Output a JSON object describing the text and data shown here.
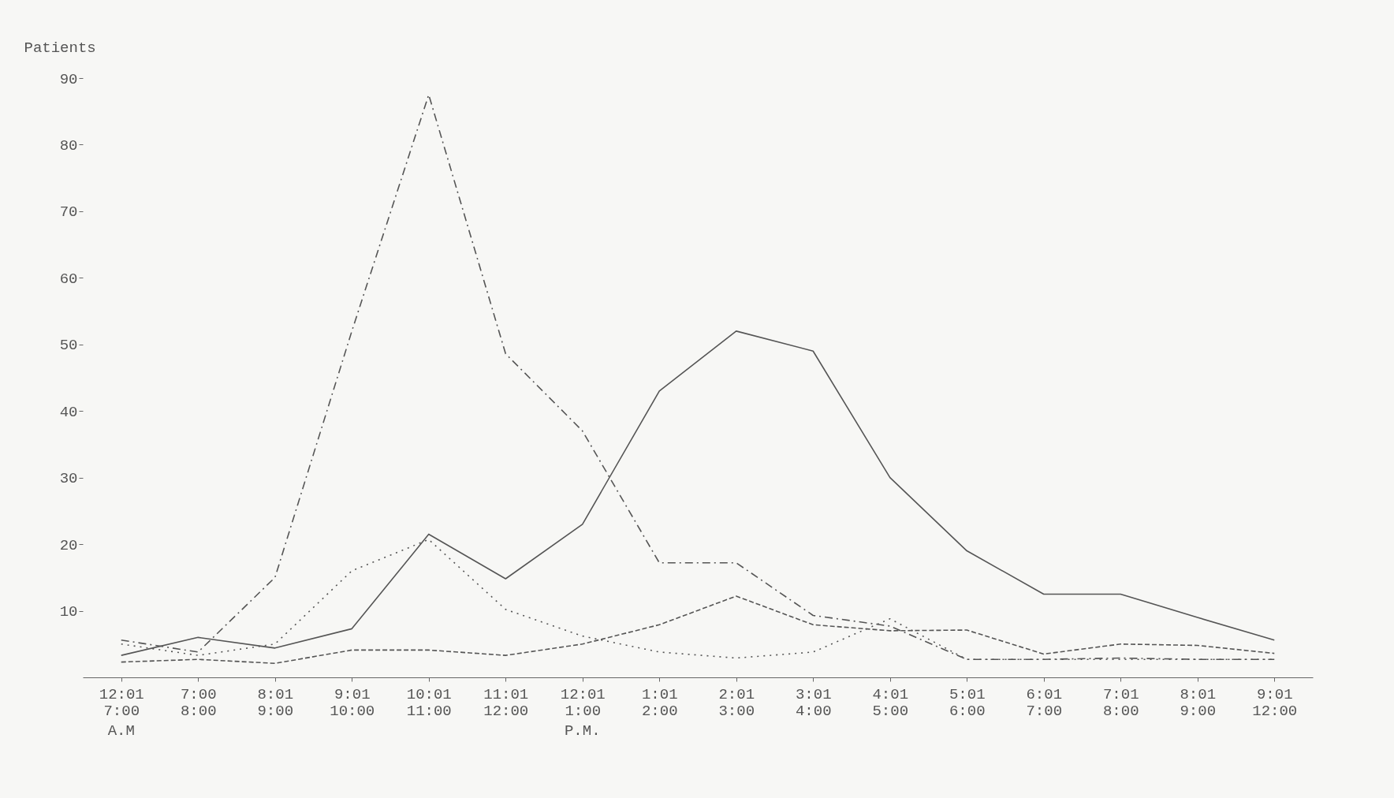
{
  "chart_data": {
    "type": "line",
    "ylabel": "Patients",
    "categories": [
      "12:01 7:00",
      "7:00 8:00",
      "8:01 9:00",
      "9:01 10:00",
      "10:01 11:00",
      "11:01 12:00",
      "12:01 1:00",
      "1:01 2:00",
      "2:01 3:00",
      "3:01 4:00",
      "4:01 5:00",
      "5:01 6:00",
      "6:01 7:00",
      "7:01 8:00",
      "8:01 9:00",
      "9:01 12:00"
    ],
    "series": [
      {
        "color": "#555555",
        "line_style": "solid",
        "values": [
          3.3,
          6,
          4.4,
          7.3,
          21.5,
          14.8,
          23,
          43,
          52,
          49,
          30,
          19,
          12.5,
          12.5,
          9,
          5.6
        ]
      },
      {
        "color": "#555555",
        "line_style": "dashdot",
        "values": [
          5.6,
          3.8,
          15,
          52,
          87.5,
          48.6,
          37,
          17.2,
          17.2,
          9.3,
          7.7,
          2.7,
          2.7,
          2.9,
          2.7,
          2.7
        ]
      },
      {
        "color": "#555555",
        "line_style": "dotted",
        "values": [
          5,
          3.3,
          5,
          16,
          20.7,
          10.2,
          6.2,
          3.8,
          2.9,
          3.8,
          8.8,
          2.7,
          2.7,
          2.7,
          2.7,
          2.7
        ]
      },
      {
        "color": "#555555",
        "line_style": "dashed",
        "values": [
          2.3,
          2.7,
          2.1,
          4.1,
          4.1,
          3.3,
          5,
          7.9,
          12.2,
          7.9,
          7,
          7.1,
          3.5,
          5,
          4.8,
          3.6
        ]
      }
    ],
    "ylim": [
      0,
      90
    ],
    "yticks": [
      10,
      20,
      30,
      40,
      50,
      60,
      70,
      80,
      90
    ],
    "grid": false,
    "annotations": [
      "A.M",
      "P.M."
    ]
  }
}
